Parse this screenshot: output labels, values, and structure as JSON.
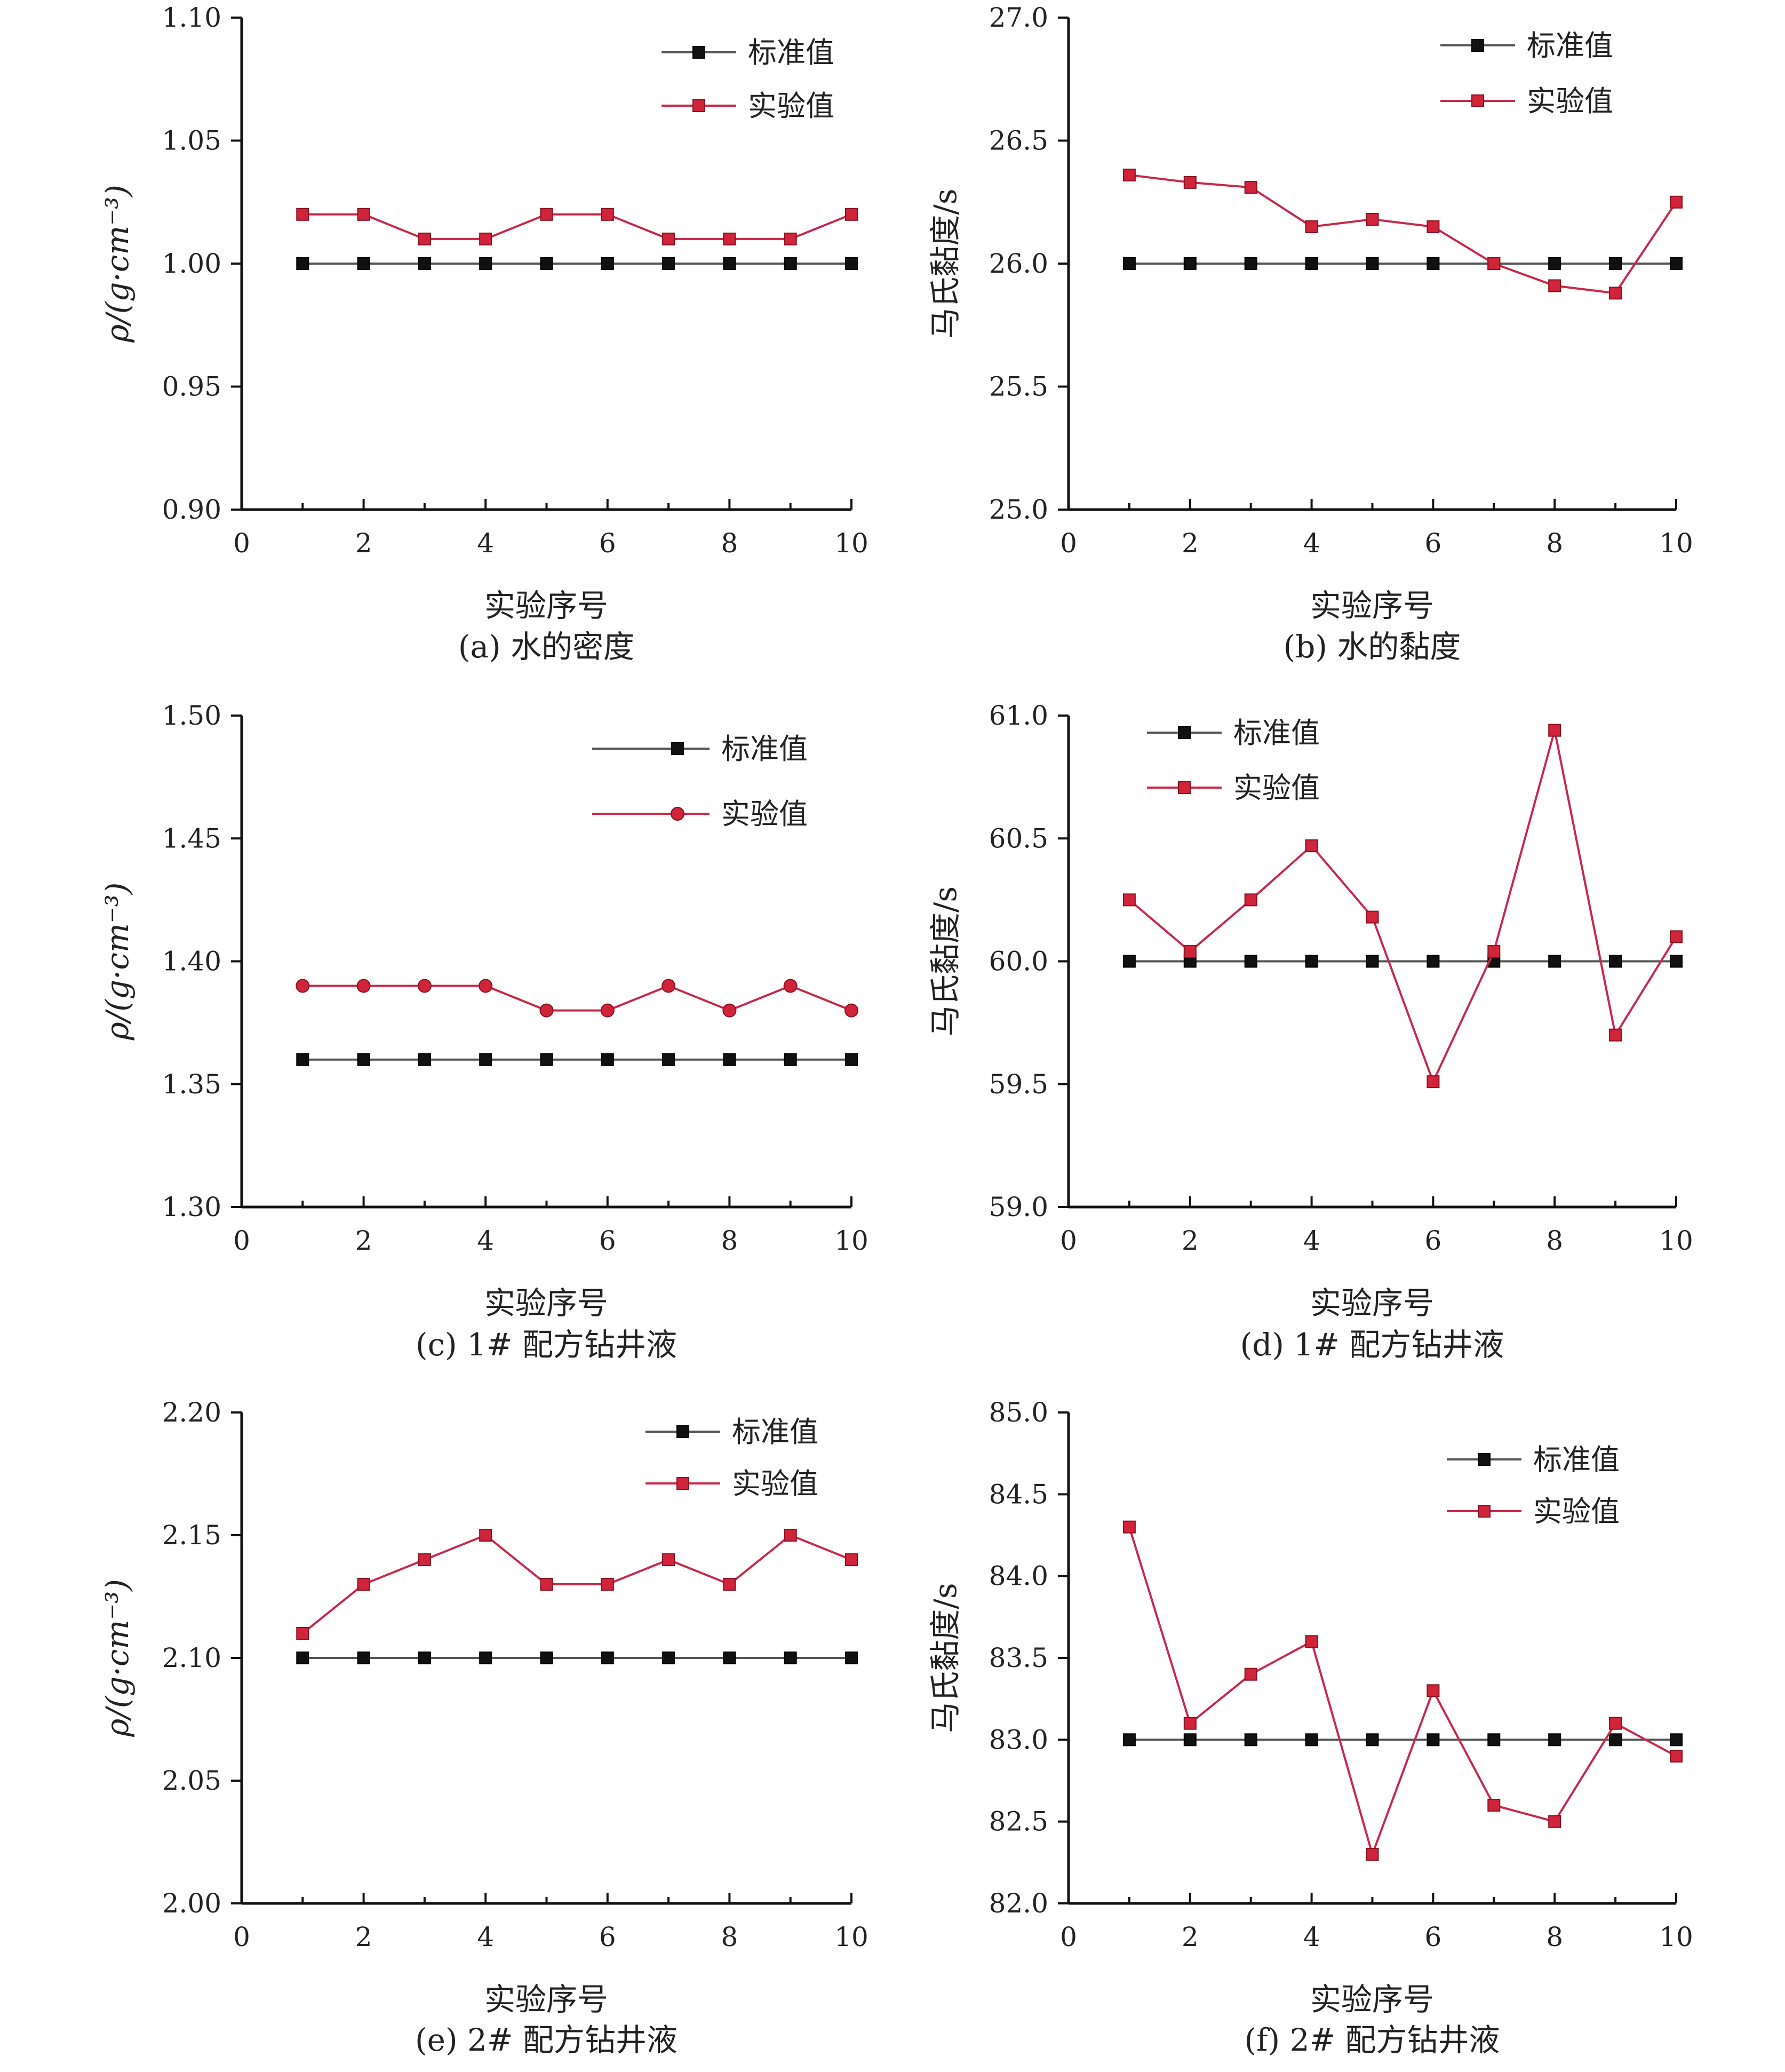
{
  "figure": {
    "panels": [
      {
        "id": "a",
        "caption": "(a) 水的密度",
        "xlabel": "实验序号",
        "ylabel": "ρ/(g·cm⁻³)"
      },
      {
        "id": "b",
        "caption": "(b) 水的黏度",
        "xlabel": "实验序号",
        "ylabel": "马氏黏度/s"
      },
      {
        "id": "c",
        "caption": "(c) 1# 配方钻井液",
        "xlabel": "实验序号",
        "ylabel": "ρ/(g·cm⁻³)"
      },
      {
        "id": "d",
        "caption": "(d) 1# 配方钻井液",
        "xlabel": "实验序号",
        "ylabel": "马氏黏度/s"
      },
      {
        "id": "e",
        "caption": "(e) 2# 配方钻井液",
        "xlabel": "实验序号",
        "ylabel": "ρ/(g·cm⁻³)"
      },
      {
        "id": "f",
        "caption": "(f) 2# 配方钻井液",
        "xlabel": "实验序号",
        "ylabel": "马氏黏度/s"
      }
    ]
  },
  "colors": {
    "standard": "#111111",
    "experiment": "#d0243a",
    "line_standard": "#555555",
    "line_experiment": "#c8284a"
  },
  "chart_data": [
    {
      "type": "line",
      "title": "",
      "caption": "(a) 水的密度",
      "xlabel": "实验序号",
      "ylabel": "ρ/(g·cm⁻³)",
      "xlim": [
        0,
        10
      ],
      "ylim": [
        0.9,
        1.1
      ],
      "xticks": [
        0,
        2,
        4,
        6,
        8,
        10
      ],
      "yticks": [
        0.9,
        0.95,
        1.0,
        1.05,
        1.1
      ],
      "ytick_labels": [
        "0.90",
        "0.95",
        "1.00",
        "1.05",
        "1.10"
      ],
      "legend_position": "top-right",
      "x": [
        1,
        2,
        3,
        4,
        5,
        6,
        7,
        8,
        9,
        10
      ],
      "series": [
        {
          "name": "标准值",
          "marker": "square",
          "values": [
            1.0,
            1.0,
            1.0,
            1.0,
            1.0,
            1.0,
            1.0,
            1.0,
            1.0,
            1.0
          ]
        },
        {
          "name": "实验值",
          "marker": "square",
          "values": [
            1.02,
            1.02,
            1.01,
            1.01,
            1.02,
            1.02,
            1.01,
            1.01,
            1.01,
            1.02
          ]
        }
      ]
    },
    {
      "type": "line",
      "title": "",
      "caption": "(b) 水的黏度",
      "xlabel": "实验序号",
      "ylabel": "马氏黏度/s",
      "xlim": [
        0,
        10
      ],
      "ylim": [
        25.0,
        27.0
      ],
      "xticks": [
        0,
        2,
        4,
        6,
        8,
        10
      ],
      "yticks": [
        25.0,
        25.5,
        26.0,
        26.5,
        27.0
      ],
      "ytick_labels": [
        "25.0",
        "25.5",
        "26.0",
        "26.5",
        "27.0"
      ],
      "legend_position": "top-right",
      "x": [
        1,
        2,
        3,
        4,
        5,
        6,
        7,
        8,
        9,
        10
      ],
      "series": [
        {
          "name": "标准值",
          "marker": "square",
          "values": [
            26.0,
            26.0,
            26.0,
            26.0,
            26.0,
            26.0,
            26.0,
            26.0,
            26.0,
            26.0
          ]
        },
        {
          "name": "实验值",
          "marker": "square",
          "values": [
            26.36,
            26.33,
            26.31,
            26.15,
            26.18,
            26.15,
            26.0,
            25.91,
            25.88,
            26.25
          ]
        }
      ]
    },
    {
      "type": "line",
      "title": "",
      "caption": "(c) 1# 配方钻井液",
      "xlabel": "实验序号",
      "ylabel": "ρ/(g·cm⁻³)",
      "xlim": [
        0,
        10
      ],
      "ylim": [
        1.3,
        1.5
      ],
      "xticks": [
        0,
        2,
        4,
        6,
        8,
        10
      ],
      "yticks": [
        1.3,
        1.35,
        1.4,
        1.45,
        1.5
      ],
      "ytick_labels": [
        "1.30",
        "1.35",
        "1.40",
        "1.45",
        "1.50"
      ],
      "legend_position": "top-right",
      "x": [
        1,
        2,
        3,
        4,
        5,
        6,
        7,
        8,
        9,
        10
      ],
      "series": [
        {
          "name": "标准值",
          "marker": "square",
          "values": [
            1.36,
            1.36,
            1.36,
            1.36,
            1.36,
            1.36,
            1.36,
            1.36,
            1.36,
            1.36
          ]
        },
        {
          "name": "实验值",
          "marker": "circle",
          "values": [
            1.39,
            1.39,
            1.39,
            1.39,
            1.38,
            1.38,
            1.39,
            1.38,
            1.39,
            1.38
          ]
        }
      ]
    },
    {
      "type": "line",
      "title": "",
      "caption": "(d) 1# 配方钻井液",
      "xlabel": "实验序号",
      "ylabel": "马氏黏度/s",
      "xlim": [
        0,
        10
      ],
      "ylim": [
        59.0,
        61.0
      ],
      "xticks": [
        0,
        2,
        4,
        6,
        8,
        10
      ],
      "yticks": [
        59.0,
        59.5,
        60.0,
        60.5,
        61.0
      ],
      "ytick_labels": [
        "59.0",
        "59.5",
        "60.0",
        "60.5",
        "61.0"
      ],
      "legend_position": "top-left",
      "x": [
        1,
        2,
        3,
        4,
        5,
        6,
        7,
        8,
        9,
        10
      ],
      "series": [
        {
          "name": "标准值",
          "marker": "square",
          "values": [
            60.0,
            60.0,
            60.0,
            60.0,
            60.0,
            60.0,
            60.0,
            60.0,
            60.0,
            60.0
          ]
        },
        {
          "name": "实验值",
          "marker": "square",
          "values": [
            60.25,
            60.04,
            60.25,
            60.47,
            60.18,
            59.51,
            60.04,
            60.94,
            59.7,
            60.1
          ]
        }
      ]
    },
    {
      "type": "line",
      "title": "",
      "caption": "(e) 2# 配方钻井液",
      "xlabel": "实验序号",
      "ylabel": "ρ/(g·cm⁻³)",
      "xlim": [
        0,
        10
      ],
      "ylim": [
        2.0,
        2.2
      ],
      "xticks": [
        0,
        2,
        4,
        6,
        8,
        10
      ],
      "yticks": [
        2.0,
        2.05,
        2.1,
        2.15,
        2.2
      ],
      "ytick_labels": [
        "2.00",
        "2.05",
        "2.10",
        "2.15",
        "2.20"
      ],
      "legend_position": "top-right",
      "x": [
        1,
        2,
        3,
        4,
        5,
        6,
        7,
        8,
        9,
        10
      ],
      "series": [
        {
          "name": "标准值",
          "marker": "square",
          "values": [
            2.1,
            2.1,
            2.1,
            2.1,
            2.1,
            2.1,
            2.1,
            2.1,
            2.1,
            2.1
          ]
        },
        {
          "name": "实验值",
          "marker": "square",
          "values": [
            2.11,
            2.13,
            2.14,
            2.15,
            2.13,
            2.13,
            2.14,
            2.13,
            2.15,
            2.14
          ]
        }
      ]
    },
    {
      "type": "line",
      "title": "",
      "caption": "(f) 2# 配方钻井液",
      "xlabel": "实验序号",
      "ylabel": "马氏黏度/s",
      "xlim": [
        0,
        10
      ],
      "ylim": [
        82.0,
        85.0
      ],
      "xticks": [
        0,
        2,
        4,
        6,
        8,
        10
      ],
      "yticks": [
        82.0,
        82.5,
        83.0,
        83.5,
        84.0,
        84.5,
        85.0
      ],
      "ytick_labels": [
        "82.0",
        "82.5",
        "83.0",
        "83.5",
        "84.0",
        "84.5",
        "85.0"
      ],
      "legend_position": "top-right",
      "x": [
        1,
        2,
        3,
        4,
        5,
        6,
        7,
        8,
        9,
        10
      ],
      "series": [
        {
          "name": "标准值",
          "marker": "square",
          "values": [
            83.0,
            83.0,
            83.0,
            83.0,
            83.0,
            83.0,
            83.0,
            83.0,
            83.0,
            83.0
          ]
        },
        {
          "name": "实验值",
          "marker": "square",
          "values": [
            84.3,
            83.1,
            83.4,
            83.6,
            82.3,
            83.3,
            82.6,
            82.5,
            83.1,
            82.9
          ]
        }
      ]
    }
  ]
}
